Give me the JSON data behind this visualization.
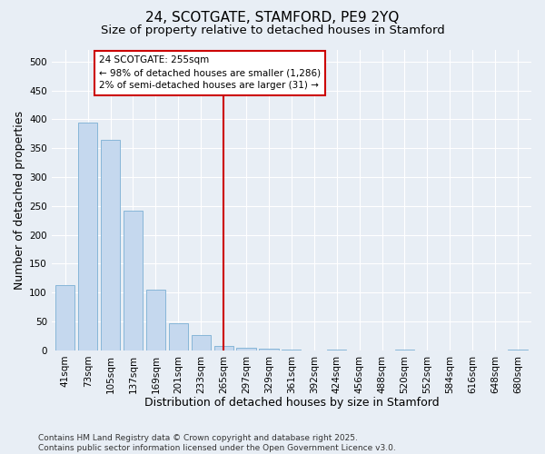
{
  "title": "24, SCOTGATE, STAMFORD, PE9 2YQ",
  "subtitle": "Size of property relative to detached houses in Stamford",
  "xlabel": "Distribution of detached houses by size in Stamford",
  "ylabel": "Number of detached properties",
  "categories": [
    "41sqm",
    "73sqm",
    "105sqm",
    "137sqm",
    "169sqm",
    "201sqm",
    "233sqm",
    "265sqm",
    "297sqm",
    "329sqm",
    "361sqm",
    "392sqm",
    "424sqm",
    "456sqm",
    "488sqm",
    "520sqm",
    "552sqm",
    "584sqm",
    "616sqm",
    "648sqm",
    "680sqm"
  ],
  "values": [
    113,
    395,
    365,
    242,
    105,
    47,
    27,
    8,
    5,
    3,
    1,
    0,
    1,
    0,
    0,
    1,
    0,
    0,
    0,
    0,
    1
  ],
  "bar_color": "#c5d8ee",
  "bar_edge_color": "#7aafd4",
  "vline_x_index": 7,
  "vline_color": "#cc0000",
  "annotation_text": "24 SCOTGATE: 255sqm\n← 98% of detached houses are smaller (1,286)\n2% of semi-detached houses are larger (31) →",
  "annotation_box_facecolor": "#ffffff",
  "annotation_box_edgecolor": "#cc0000",
  "ylim": [
    0,
    520
  ],
  "yticks": [
    0,
    50,
    100,
    150,
    200,
    250,
    300,
    350,
    400,
    450,
    500
  ],
  "background_color": "#e8eef5",
  "grid_color": "#ffffff",
  "footer_text": "Contains HM Land Registry data © Crown copyright and database right 2025.\nContains public sector information licensed under the Open Government Licence v3.0.",
  "title_fontsize": 11,
  "subtitle_fontsize": 9.5,
  "xlabel_fontsize": 9,
  "ylabel_fontsize": 9,
  "tick_fontsize": 7.5,
  "annotation_fontsize": 7.5,
  "footer_fontsize": 6.5
}
